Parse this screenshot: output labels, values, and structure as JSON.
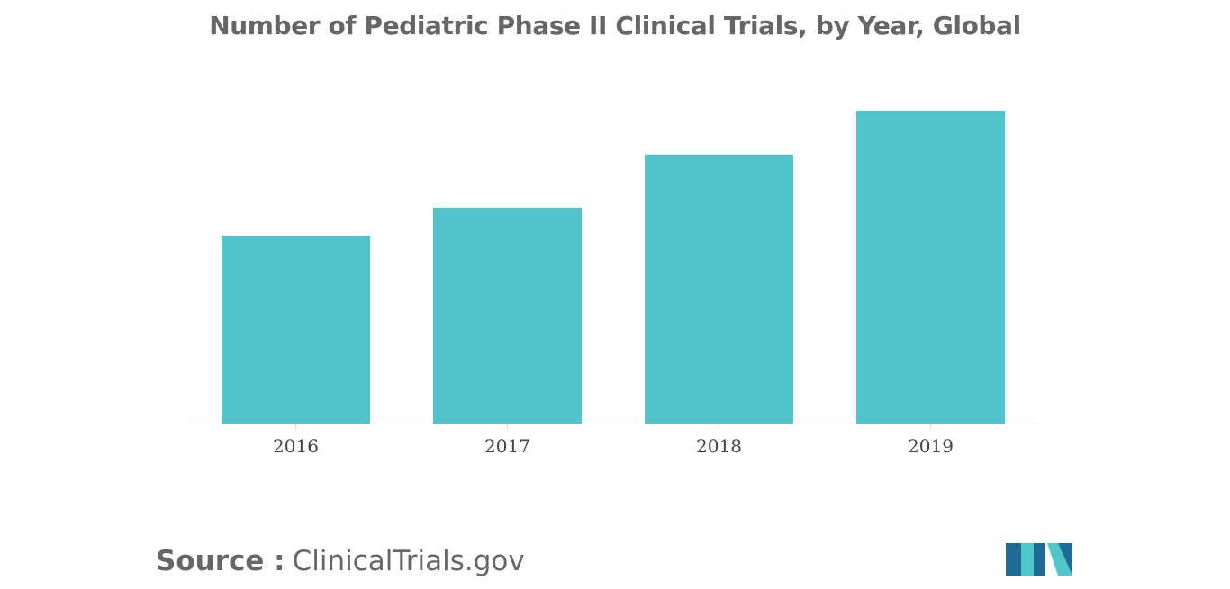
{
  "colors": {
    "bar": "#52c3ca",
    "axis": "#d9d9d9",
    "title_text": "#666666",
    "tick_text": "#444444",
    "logo_dark": "#1f6b96",
    "logo_light": "#4fc6c9"
  },
  "chart_data": {
    "type": "bar",
    "title": "Number of Pediatric Phase II Clinical Trials, by Year, Global",
    "categories": [
      "2016",
      "2017",
      "2018",
      "2019"
    ],
    "values": [
      60,
      69,
      86,
      100
    ],
    "ylim": [
      0,
      100
    ],
    "y_axis_shown": false,
    "grid": false,
    "legend": "none"
  },
  "source": {
    "label": "Source :",
    "value": "ClinicalTrials.gov"
  },
  "logo": {
    "icon": "mordor-intelligence-logo-icon"
  }
}
